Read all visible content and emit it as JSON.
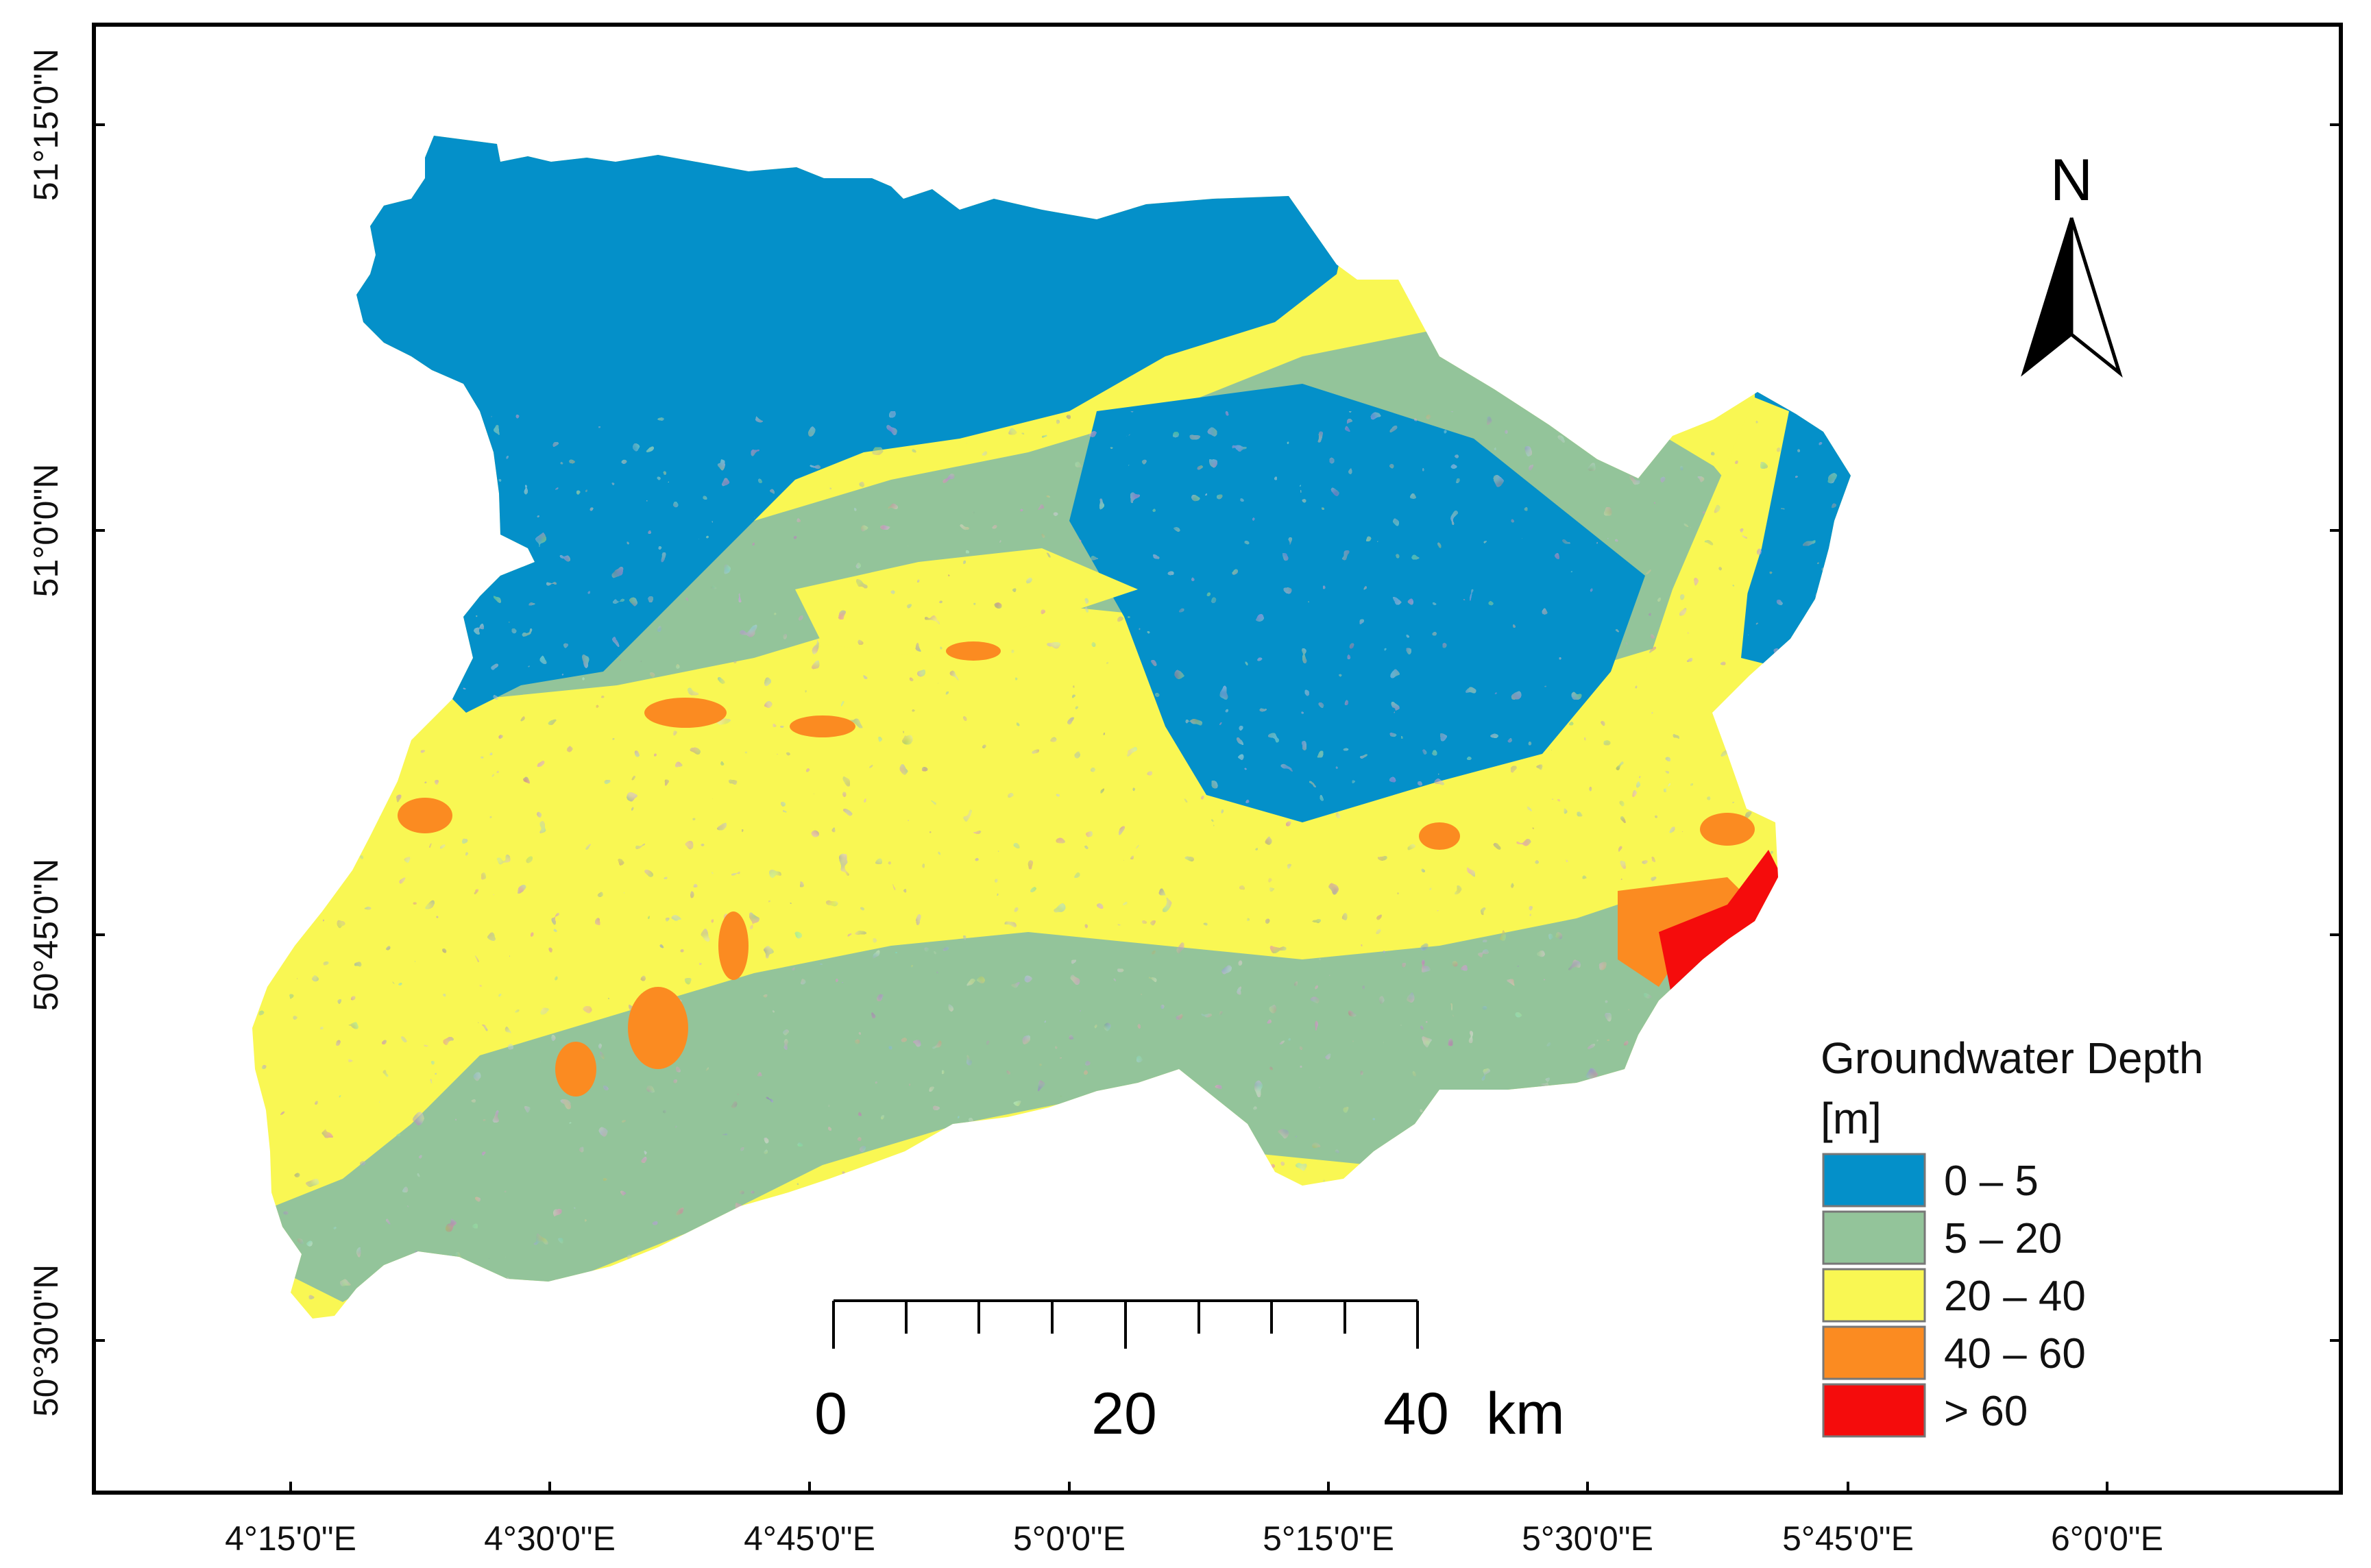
{
  "map": {
    "x_ticks": [
      "4°15'0\"E",
      "4°30'0\"E",
      "4°45'0\"E",
      "5°0'0\"E",
      "5°15'0\"E",
      "5°30'0\"E",
      "5°45'0\"E",
      "6°0'0\"E"
    ],
    "y_ticks": [
      "51°15'0\"N",
      "51°0'0\"N",
      "50°45'0\"N",
      "50°30'0\"N"
    ],
    "north_arrow": {
      "label": "N",
      "icon": "north-arrow-icon"
    },
    "scale_bar": {
      "labels": [
        "0",
        "20",
        "40"
      ],
      "unit": "km"
    },
    "legend": {
      "title_line1": "Groundwater Depth",
      "title_line2": "[m]",
      "classes": [
        {
          "label": "0 – 5",
          "color": "#0490c9"
        },
        {
          "label": "5 – 20",
          "color": "#93c49a"
        },
        {
          "label": "20 – 40",
          "color": "#f9f753"
        },
        {
          "label": "40 – 60",
          "color": "#fb8b21"
        },
        {
          "label": "> 60",
          "color": "#f50c0c"
        }
      ]
    }
  }
}
